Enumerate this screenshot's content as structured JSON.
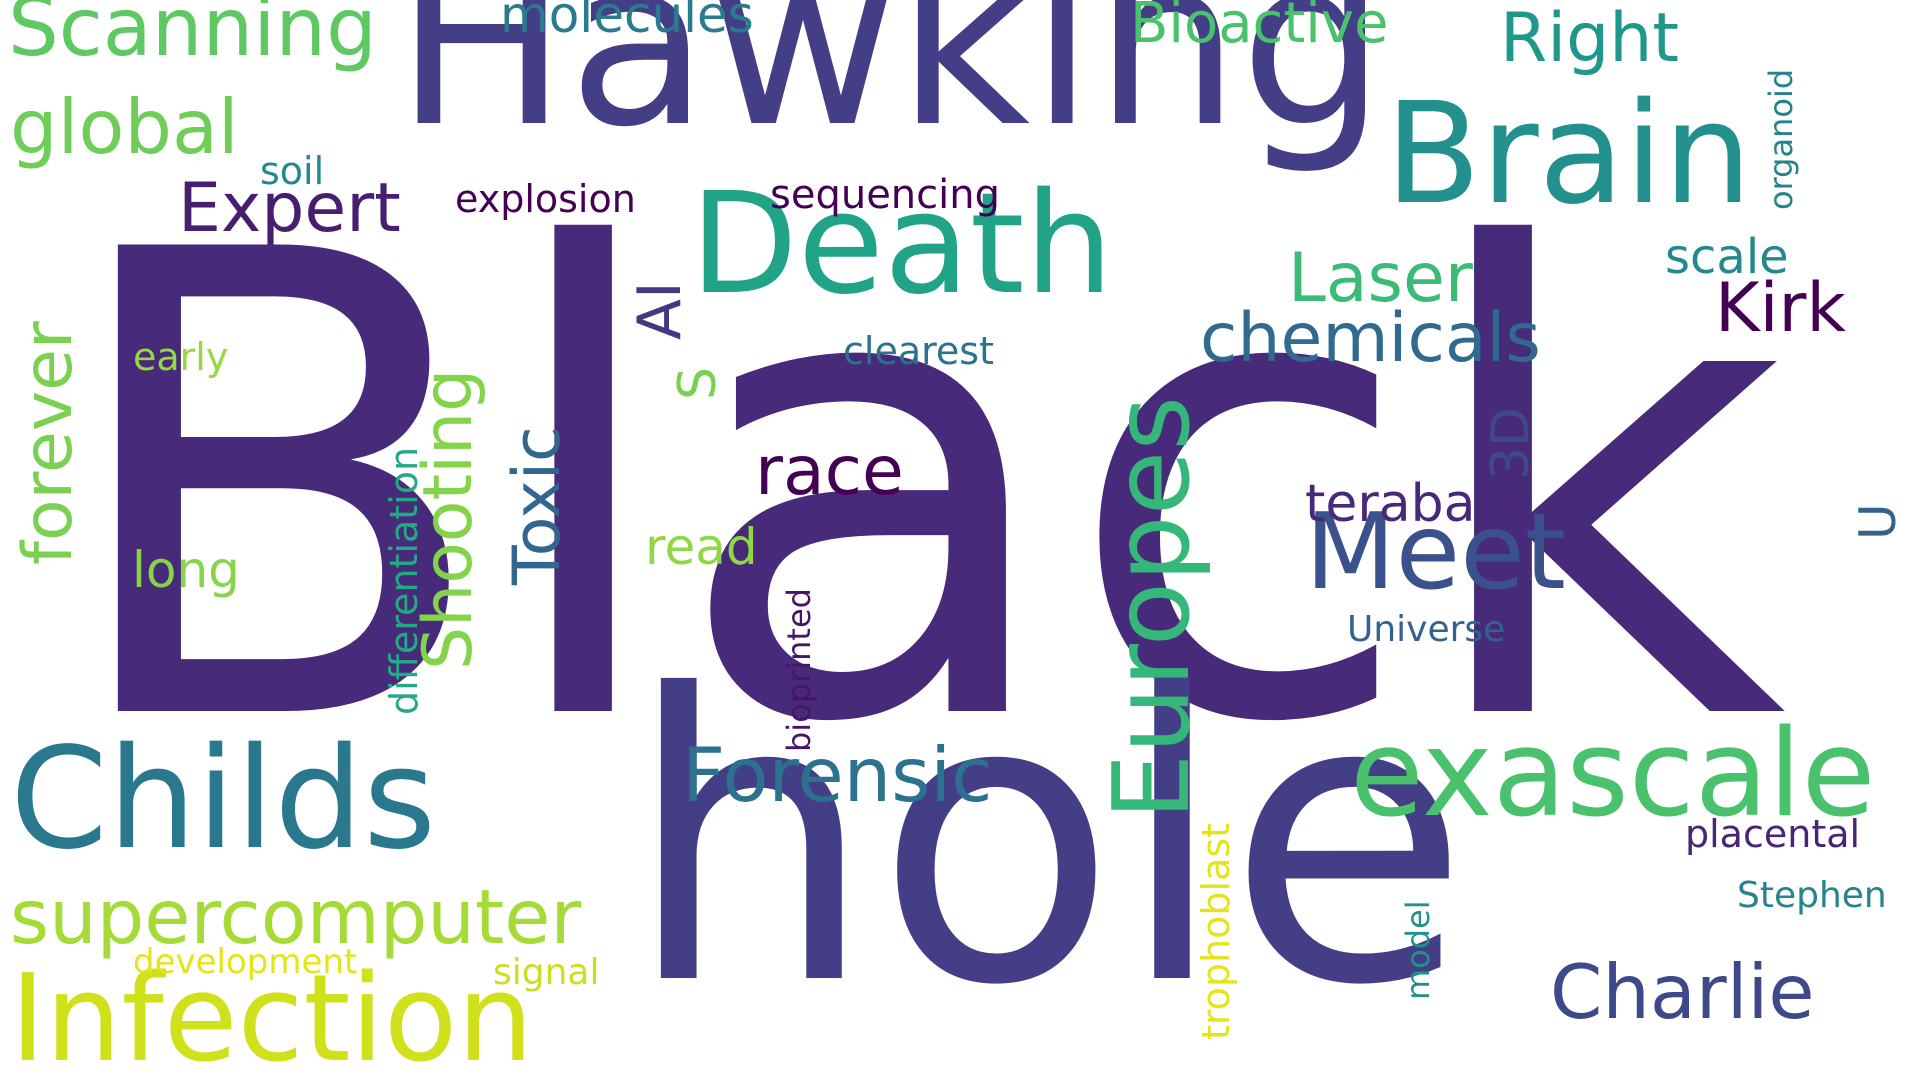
{
  "words": [
    {
      "id": "black",
      "text": "Black",
      "color": "#472a7a"
    },
    {
      "id": "hole",
      "text": "hole",
      "color": "#433e85"
    },
    {
      "id": "hawking",
      "text": "Hawking",
      "color": "#433e85"
    },
    {
      "id": "death",
      "text": "Death",
      "color": "#20a386"
    },
    {
      "id": "brain",
      "text": "Brain",
      "color": "#22908d"
    },
    {
      "id": "childs",
      "text": "Childs",
      "color": "#2a788e"
    },
    {
      "id": "exascale",
      "text": "exascale",
      "color": "#4ac16d"
    },
    {
      "id": "europes",
      "text": "Europes",
      "color": "#35b779"
    },
    {
      "id": "infection",
      "text": "Infection",
      "color": "#d0e11c"
    },
    {
      "id": "supercomputer",
      "text": "supercomputer",
      "color": "#a5db36"
    },
    {
      "id": "meet",
      "text": "Meet",
      "color": "#3b518b"
    },
    {
      "id": "scanning",
      "text": "Scanning",
      "color": "#5ec962"
    },
    {
      "id": "global",
      "text": "global",
      "color": "#6ece58"
    },
    {
      "id": "forensic",
      "text": "Forensic",
      "color": "#2c718e"
    },
    {
      "id": "charlie",
      "text": "Charlie",
      "color": "#3e4989"
    },
    {
      "id": "chemicals",
      "text": "chemicals",
      "color": "#306a8e"
    },
    {
      "id": "shooting",
      "text": "Shooting",
      "color": "#84d44b"
    },
    {
      "id": "toxic",
      "text": "Toxic",
      "color": "#31668e"
    },
    {
      "id": "expert",
      "text": "Expert",
      "color": "#481f70"
    },
    {
      "id": "forever",
      "text": "forever",
      "color": "#7ad151"
    },
    {
      "id": "race",
      "text": "race",
      "color": "#440154"
    },
    {
      "id": "kirk",
      "text": "Kirk",
      "color": "#440154"
    },
    {
      "id": "laser",
      "text": "Laser",
      "color": "#3bbb75"
    },
    {
      "id": "ai",
      "text": "AI",
      "color": "#453781"
    },
    {
      "id": "right",
      "text": "Right",
      "color": "#1f988b"
    },
    {
      "id": "bioactive",
      "text": "Bioactive",
      "color": "#4ac16d"
    },
    {
      "id": "molecules",
      "text": "molecules",
      "color": "#287c8e"
    },
    {
      "id": "threed",
      "text": "3D",
      "color": "#3e4989"
    },
    {
      "id": "terabase",
      "text": "terabase",
      "color": "#482878"
    },
    {
      "id": "s",
      "text": "S",
      "color": "#7ad151"
    },
    {
      "id": "long",
      "text": "long",
      "color": "#86d549"
    },
    {
      "id": "read",
      "text": "read",
      "color": "#8fd744"
    },
    {
      "id": "scale",
      "text": "scale",
      "color": "#23898e"
    },
    {
      "id": "sequencing",
      "text": "sequencing",
      "color": "#440154"
    },
    {
      "id": "explosion",
      "text": "explosion",
      "color": "#440154"
    },
    {
      "id": "soil",
      "text": "soil",
      "color": "#23898e"
    },
    {
      "id": "differentiation",
      "text": "differentiation",
      "color": "#23a983"
    },
    {
      "id": "early",
      "text": "early",
      "color": "#95d840"
    },
    {
      "id": "clearest",
      "text": "clearest",
      "color": "#2c728e"
    },
    {
      "id": "u",
      "text": "U",
      "color": "#33638d"
    },
    {
      "id": "universe",
      "text": "Universe",
      "color": "#33638d"
    },
    {
      "id": "bioprinted",
      "text": "bioprinted",
      "color": "#481467"
    },
    {
      "id": "organoid",
      "text": "organoid",
      "color": "#26828e"
    },
    {
      "id": "placental",
      "text": "placental",
      "color": "#482576"
    },
    {
      "id": "stephen",
      "text": "Stephen",
      "color": "#25848e"
    },
    {
      "id": "trophoblast",
      "text": "trophoblast",
      "color": "#e5e419"
    },
    {
      "id": "model",
      "text": "model",
      "color": "#21918c"
    },
    {
      "id": "development",
      "text": "development",
      "color": "#e5e419"
    },
    {
      "id": "signal",
      "text": "signal",
      "color": "#c8e020"
    }
  ]
}
